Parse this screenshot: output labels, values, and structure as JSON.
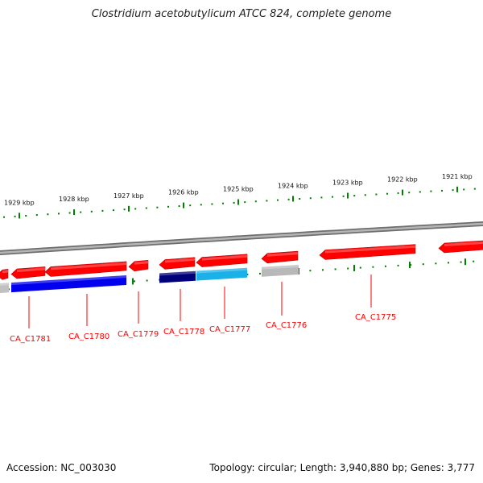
{
  "title": "Clostridium acetobutylicum ATCC 824, complete genome",
  "accession_text": "Accession: NC_003030",
  "stats_text": "Topology: circular; Length: 3,940,880 bp; Genes: 3,777",
  "colors": {
    "forward_gene": "#ff0000",
    "label_line": "#ff0000",
    "tick": "#008000",
    "backbone": "#8a8a8a"
  },
  "kbp_ticks": [
    {
      "label": "1929 kbp"
    },
    {
      "label": "1928 kbp"
    },
    {
      "label": "1927 kbp"
    },
    {
      "label": "1926 kbp"
    },
    {
      "label": "1925 kbp"
    },
    {
      "label": "1924 kbp"
    },
    {
      "label": "1923 kbp"
    },
    {
      "label": "1922 kbp"
    },
    {
      "label": "1921 kbp"
    }
  ],
  "forward_genes": [
    {
      "strand": "reverse"
    },
    {
      "strand": "reverse"
    },
    {
      "strand": "reverse"
    },
    {
      "strand": "reverse"
    },
    {
      "strand": "reverse"
    },
    {
      "strand": "reverse"
    },
    {
      "strand": "reverse"
    },
    {
      "strand": "reverse"
    },
    {
      "strand": "reverse"
    }
  ],
  "cog_blocks": [
    {
      "color": "#c0c0c0"
    },
    {
      "color": "#0000ee"
    },
    {
      "color": "#0000ee"
    },
    {
      "color": "#00007a"
    },
    {
      "color": "#1ab0e8"
    },
    {
      "color": "#b8b8b8"
    }
  ],
  "gene_labels": [
    {
      "text": "CA_C1781"
    },
    {
      "text": "CA_C1780"
    },
    {
      "text": "CA_C1779"
    },
    {
      "text": "CA_C1778"
    },
    {
      "text": "CA_C1777"
    },
    {
      "text": "CA_C1776"
    },
    {
      "text": "CA_C1775"
    }
  ]
}
